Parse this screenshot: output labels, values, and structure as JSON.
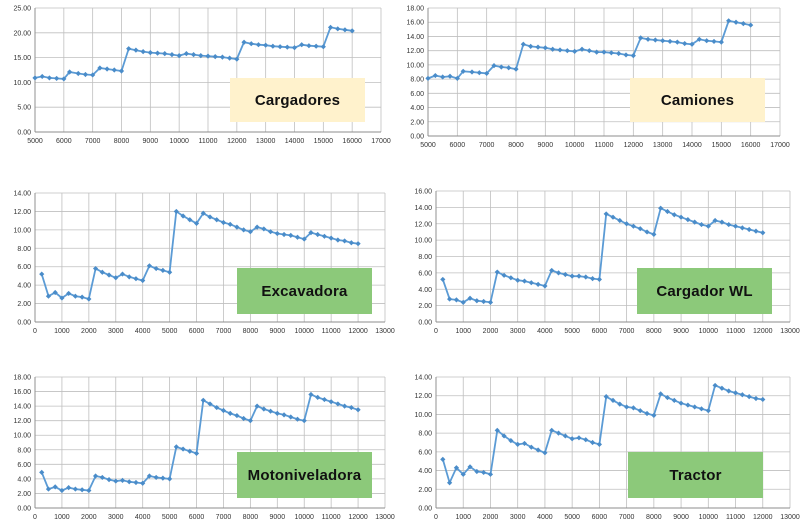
{
  "colors": {
    "series": "#5b9bd5",
    "marker": "#4a8cc9",
    "grid": "#bfbfbf",
    "label_cream": "#fff2cc",
    "label_green": "#8cc97a"
  },
  "chart_data": [
    {
      "type": "line",
      "label": "Cargadores",
      "label_color": "#fff2cc",
      "xlim": [
        5000,
        17000
      ],
      "xticks": [
        5000,
        6000,
        7000,
        8000,
        9000,
        10000,
        11000,
        12000,
        13000,
        14000,
        15000,
        16000,
        17000
      ],
      "ylim": [
        0,
        25
      ],
      "yticks": [
        0,
        5,
        10,
        15,
        20,
        25
      ],
      "ydecimals": 2,
      "grid": true,
      "x": [
        5000,
        5250,
        5500,
        5750,
        6000,
        6200,
        6500,
        6750,
        7000,
        7250,
        7500,
        7750,
        8000,
        8250,
        8500,
        8750,
        9000,
        9250,
        9500,
        9750,
        10000,
        10250,
        10500,
        10750,
        11000,
        11250,
        11500,
        11750,
        12000,
        12250,
        12500,
        12750,
        13000,
        13250,
        13500,
        13750,
        14000,
        14250,
        14500,
        14750,
        15000,
        15250,
        15500,
        15750,
        16000
      ],
      "y": [
        10.9,
        11.2,
        10.9,
        10.8,
        10.7,
        12.1,
        11.8,
        11.6,
        11.5,
        12.9,
        12.7,
        12.5,
        12.3,
        16.8,
        16.5,
        16.2,
        16.0,
        15.9,
        15.8,
        15.6,
        15.4,
        15.8,
        15.6,
        15.4,
        15.3,
        15.2,
        15.1,
        14.9,
        14.7,
        18.1,
        17.8,
        17.6,
        17.5,
        17.3,
        17.2,
        17.1,
        17.0,
        17.6,
        17.4,
        17.3,
        17.2,
        21.1,
        20.8,
        20.6,
        20.4
      ]
    },
    {
      "type": "line",
      "label": "Camiones",
      "label_color": "#fff2cc",
      "xlim": [
        5000,
        17000
      ],
      "xticks": [
        5000,
        6000,
        7000,
        8000,
        9000,
        10000,
        11000,
        12000,
        13000,
        14000,
        15000,
        16000,
        17000
      ],
      "ylim": [
        0,
        18
      ],
      "yticks": [
        0,
        2,
        4,
        6,
        8,
        10,
        12,
        14,
        16,
        18
      ],
      "ydecimals": 2,
      "grid": true,
      "x": [
        5000,
        5250,
        5500,
        5750,
        6000,
        6200,
        6500,
        6750,
        7000,
        7250,
        7500,
        7750,
        8000,
        8250,
        8500,
        8750,
        9000,
        9250,
        9500,
        9750,
        10000,
        10250,
        10500,
        10750,
        11000,
        11250,
        11500,
        11750,
        12000,
        12250,
        12500,
        12750,
        13000,
        13250,
        13500,
        13750,
        14000,
        14250,
        14500,
        14750,
        15000,
        15250,
        15500,
        15750,
        16000
      ],
      "y": [
        8.1,
        8.5,
        8.3,
        8.4,
        8.1,
        9.1,
        9.0,
        8.9,
        8.8,
        9.9,
        9.7,
        9.6,
        9.4,
        12.9,
        12.6,
        12.5,
        12.4,
        12.2,
        12.1,
        12.0,
        11.9,
        12.2,
        12.0,
        11.8,
        11.8,
        11.7,
        11.6,
        11.4,
        11.3,
        13.8,
        13.6,
        13.5,
        13.4,
        13.3,
        13.2,
        13.0,
        12.9,
        13.6,
        13.4,
        13.3,
        13.2,
        16.2,
        16.0,
        15.8,
        15.6
      ]
    },
    {
      "type": "line",
      "label": "Excavadora",
      "label_color": "#8cc97a",
      "xlim": [
        0,
        13000
      ],
      "xticks": [
        0,
        1000,
        2000,
        3000,
        4000,
        5000,
        6000,
        7000,
        8000,
        9000,
        10000,
        11000,
        12000,
        13000
      ],
      "ylim": [
        0,
        14
      ],
      "yticks": [
        0,
        2,
        4,
        6,
        8,
        10,
        12,
        14
      ],
      "ydecimals": 2,
      "grid": true,
      "x": [
        250,
        500,
        750,
        1000,
        1250,
        1500,
        1750,
        2000,
        2250,
        2500,
        2750,
        3000,
        3250,
        3500,
        3750,
        4000,
        4250,
        4500,
        4750,
        5000,
        5250,
        5500,
        5750,
        6000,
        6250,
        6500,
        6750,
        7000,
        7250,
        7500,
        7750,
        8000,
        8250,
        8500,
        8750,
        9000,
        9250,
        9500,
        9750,
        10000,
        10250,
        10500,
        10750,
        11000,
        11250,
        11500,
        11750,
        12000
      ],
      "y": [
        5.2,
        2.8,
        3.2,
        2.6,
        3.1,
        2.8,
        2.7,
        2.5,
        5.8,
        5.4,
        5.1,
        4.8,
        5.2,
        4.9,
        4.7,
        4.5,
        6.1,
        5.8,
        5.6,
        5.4,
        12.0,
        11.5,
        11.1,
        10.7,
        11.8,
        11.4,
        11.1,
        10.8,
        10.6,
        10.3,
        10.0,
        9.8,
        10.3,
        10.1,
        9.8,
        9.6,
        9.5,
        9.4,
        9.2,
        9.0,
        9.7,
        9.5,
        9.3,
        9.1,
        8.9,
        8.8,
        8.6,
        8.5
      ]
    },
    {
      "type": "line",
      "label": "Cargador WL",
      "label_color": "#8cc97a",
      "xlim": [
        0,
        13000
      ],
      "xticks": [
        0,
        1000,
        2000,
        3000,
        4000,
        5000,
        6000,
        7000,
        8000,
        9000,
        10000,
        11000,
        12000,
        13000
      ],
      "ylim": [
        0,
        16
      ],
      "yticks": [
        0,
        2,
        4,
        6,
        8,
        10,
        12,
        14,
        16
      ],
      "ydecimals": 2,
      "grid": true,
      "x": [
        250,
        500,
        750,
        1000,
        1250,
        1500,
        1750,
        2000,
        2250,
        2500,
        2750,
        3000,
        3250,
        3500,
        3750,
        4000,
        4250,
        4500,
        4750,
        5000,
        5250,
        5500,
        5750,
        6000,
        6250,
        6500,
        6750,
        7000,
        7250,
        7500,
        7750,
        8000,
        8250,
        8500,
        8750,
        9000,
        9250,
        9500,
        9750,
        10000,
        10250,
        10500,
        10750,
        11000,
        11250,
        11500,
        11750,
        12000
      ],
      "y": [
        5.2,
        2.8,
        2.7,
        2.4,
        2.9,
        2.6,
        2.5,
        2.4,
        6.1,
        5.7,
        5.4,
        5.1,
        5.0,
        4.8,
        4.6,
        4.4,
        6.3,
        6.0,
        5.8,
        5.6,
        5.6,
        5.5,
        5.3,
        5.2,
        13.2,
        12.8,
        12.4,
        12.0,
        11.7,
        11.4,
        11.0,
        10.7,
        13.9,
        13.5,
        13.1,
        12.8,
        12.5,
        12.2,
        11.9,
        11.7,
        12.4,
        12.2,
        11.9,
        11.7,
        11.5,
        11.3,
        11.1,
        10.9
      ]
    },
    {
      "type": "line",
      "label": "Motoniveladora",
      "label_color": "#8cc97a",
      "xlim": [
        0,
        13000
      ],
      "xticks": [
        0,
        1000,
        2000,
        3000,
        4000,
        5000,
        6000,
        7000,
        8000,
        9000,
        10000,
        11000,
        12000,
        13000
      ],
      "ylim": [
        0,
        18
      ],
      "yticks": [
        0,
        2,
        4,
        6,
        8,
        10,
        12,
        14,
        16,
        18
      ],
      "ydecimals": 2,
      "grid": true,
      "x": [
        250,
        500,
        750,
        1000,
        1250,
        1500,
        1750,
        2000,
        2250,
        2500,
        2750,
        3000,
        3250,
        3500,
        3750,
        4000,
        4250,
        4500,
        4750,
        5000,
        5250,
        5500,
        5750,
        6000,
        6250,
        6500,
        6750,
        7000,
        7250,
        7500,
        7750,
        8000,
        8250,
        8500,
        8750,
        9000,
        9250,
        9500,
        9750,
        10000,
        10250,
        10500,
        10750,
        11000,
        11250,
        11500,
        11750,
        12000
      ],
      "y": [
        4.9,
        2.6,
        2.9,
        2.4,
        2.8,
        2.6,
        2.5,
        2.4,
        4.4,
        4.2,
        3.9,
        3.7,
        3.8,
        3.6,
        3.5,
        3.4,
        4.4,
        4.2,
        4.1,
        4.0,
        8.4,
        8.1,
        7.8,
        7.5,
        14.8,
        14.3,
        13.8,
        13.4,
        13.0,
        12.7,
        12.3,
        12.0,
        14.0,
        13.6,
        13.3,
        13.0,
        12.8,
        12.5,
        12.2,
        12.0,
        15.6,
        15.2,
        14.9,
        14.6,
        14.3,
        14.0,
        13.8,
        13.5
      ]
    },
    {
      "type": "line",
      "label": "Tractor",
      "label_color": "#8cc97a",
      "xlim": [
        0,
        13000
      ],
      "xticks": [
        0,
        1000,
        2000,
        3000,
        4000,
        5000,
        6000,
        7000,
        8000,
        9000,
        10000,
        11000,
        12000,
        13000
      ],
      "ylim": [
        0,
        14
      ],
      "yticks": [
        0,
        2,
        4,
        6,
        8,
        10,
        12,
        14
      ],
      "ydecimals": 2,
      "grid": true,
      "x": [
        250,
        500,
        750,
        1000,
        1250,
        1500,
        1750,
        2000,
        2250,
        2500,
        2750,
        3000,
        3250,
        3500,
        3750,
        4000,
        4250,
        4500,
        4750,
        5000,
        5250,
        5500,
        5750,
        6000,
        6250,
        6500,
        6750,
        7000,
        7250,
        7500,
        7750,
        8000,
        8250,
        8500,
        8750,
        9000,
        9250,
        9500,
        9750,
        10000,
        10250,
        10500,
        10750,
        11000,
        11250,
        11500,
        11750,
        12000
      ],
      "y": [
        5.2,
        2.7,
        4.3,
        3.6,
        4.4,
        3.9,
        3.8,
        3.6,
        8.3,
        7.7,
        7.2,
        6.8,
        6.9,
        6.5,
        6.2,
        5.9,
        8.3,
        8.0,
        7.7,
        7.4,
        7.5,
        7.3,
        7.0,
        6.8,
        11.9,
        11.5,
        11.1,
        10.8,
        10.7,
        10.4,
        10.1,
        9.9,
        12.2,
        11.8,
        11.5,
        11.2,
        11.0,
        10.8,
        10.6,
        10.4,
        13.1,
        12.8,
        12.5,
        12.3,
        12.1,
        11.9,
        11.7,
        11.6
      ]
    }
  ]
}
